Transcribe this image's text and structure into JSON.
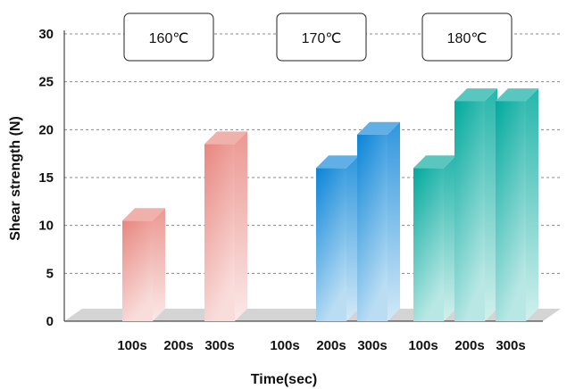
{
  "chart_data": {
    "type": "bar",
    "xlabel": "Time(sec)",
    "ylabel": "Shear strength (N)",
    "ylim": [
      0,
      30
    ],
    "yticks": [
      0,
      5,
      10,
      15,
      20,
      25,
      30
    ],
    "grid": "horizontal dashed",
    "categories": [
      "100s",
      "200s",
      "300s"
    ],
    "series": [
      {
        "name": "160℃",
        "color": "#e8867f",
        "values": [
          10.5,
          null,
          18.5
        ]
      },
      {
        "name": "170℃",
        "color": "#0a84d8",
        "values": [
          null,
          16,
          19.5
        ]
      },
      {
        "name": "180℃",
        "color": "#00a99d",
        "values": [
          16,
          23,
          23
        ]
      }
    ]
  }
}
